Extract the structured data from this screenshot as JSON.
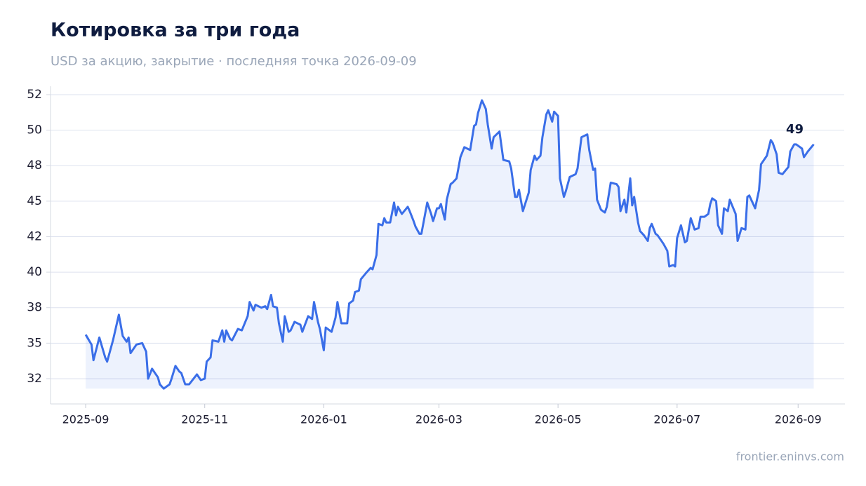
{
  "chart_data": {
    "type": "line",
    "title": "Котировка за три года",
    "subtitle": "USD за акцию, закрытие · последняя точка 2026-09-09",
    "source": "frontier.eninvs.com",
    "color": "#3a6ee8",
    "area": true,
    "grid": true,
    "x": [
      "2025-09-01",
      "2025-09-04",
      "2025-09-05",
      "2025-09-08",
      "2025-09-11",
      "2025-09-12",
      "2025-09-15",
      "2025-09-18",
      "2025-09-20",
      "2025-09-22",
      "2025-09-23",
      "2025-09-24",
      "2025-09-27",
      "2025-09-30",
      "2025-10-02",
      "2025-10-03",
      "2025-10-05",
      "2025-10-08",
      "2025-10-09",
      "2025-10-11",
      "2025-10-14",
      "2025-10-15",
      "2025-10-17",
      "2025-10-19",
      "2025-10-20",
      "2025-10-22",
      "2025-10-24",
      "2025-10-28",
      "2025-10-30",
      "2025-11-01",
      "2025-11-02",
      "2025-11-04",
      "2025-11-05",
      "2025-11-08",
      "2025-11-10",
      "2025-11-11",
      "2025-11-12",
      "2025-11-14",
      "2025-11-15",
      "2025-11-18",
      "2025-11-20",
      "2025-11-23",
      "2025-11-24",
      "2025-11-26",
      "2025-11-27",
      "2025-11-30",
      "2025-12-02",
      "2025-12-03",
      "2025-12-05",
      "2025-12-06",
      "2025-12-08",
      "2025-12-09",
      "2025-12-11",
      "2025-12-12",
      "2025-12-14",
      "2025-12-15",
      "2025-12-17",
      "2025-12-20",
      "2025-12-21",
      "2025-12-24",
      "2025-12-26",
      "2025-12-27",
      "2025-12-29",
      "2025-12-30",
      "2026-01-01",
      "2026-01-02",
      "2026-01-05",
      "2026-01-07",
      "2026-01-08",
      "2026-01-10",
      "2026-01-13",
      "2026-01-14",
      "2026-01-16",
      "2026-01-17",
      "2026-01-19",
      "2026-01-20",
      "2026-01-23",
      "2026-01-25",
      "2026-01-26",
      "2026-01-28",
      "2026-01-29",
      "2026-01-31",
      "2026-02-01",
      "2026-02-02",
      "2026-02-04",
      "2026-02-06",
      "2026-02-07",
      "2026-02-08",
      "2026-02-10",
      "2026-02-13",
      "2026-02-14",
      "2026-02-16",
      "2026-02-17",
      "2026-02-19",
      "2026-02-20",
      "2026-02-23",
      "2026-02-25",
      "2026-02-26",
      "2026-02-28",
      "2026-03-01",
      "2026-03-02",
      "2026-03-04",
      "2026-03-05",
      "2026-03-07",
      "2026-03-08",
      "2026-03-10",
      "2026-03-12",
      "2026-03-14",
      "2026-03-17",
      "2026-03-19",
      "2026-03-20",
      "2026-03-21",
      "2026-03-23",
      "2026-03-25",
      "2026-03-26",
      "2026-03-28",
      "2026-03-29",
      "2026-04-01",
      "2026-04-03",
      "2026-04-06",
      "2026-04-07",
      "2026-04-09",
      "2026-04-10",
      "2026-04-11",
      "2026-04-13",
      "2026-04-16",
      "2026-04-17",
      "2026-04-19",
      "2026-04-20",
      "2026-04-22",
      "2026-04-23",
      "2026-04-25",
      "2026-04-26",
      "2026-04-28",
      "2026-04-29",
      "2026-05-01",
      "2026-05-02",
      "2026-05-04",
      "2026-05-05",
      "2026-05-07",
      "2026-05-10",
      "2026-05-11",
      "2026-05-13",
      "2026-05-16",
      "2026-05-17",
      "2026-05-19",
      "2026-05-20",
      "2026-05-21",
      "2026-05-23",
      "2026-05-25",
      "2026-05-26",
      "2026-05-28",
      "2026-05-31",
      "2026-06-01",
      "2026-06-02",
      "2026-06-04",
      "2026-06-05",
      "2026-06-07",
      "2026-06-08",
      "2026-06-09",
      "2026-06-11",
      "2026-06-12",
      "2026-06-14",
      "2026-06-16",
      "2026-06-17",
      "2026-06-18",
      "2026-06-20",
      "2026-06-21",
      "2026-06-24",
      "2026-06-26",
      "2026-06-27",
      "2026-06-29",
      "2026-06-30",
      "2026-07-01",
      "2026-07-03",
      "2026-07-05",
      "2026-07-06",
      "2026-07-08",
      "2026-07-10",
      "2026-07-12",
      "2026-07-13",
      "2026-07-15",
      "2026-07-17",
      "2026-07-18",
      "2026-07-19",
      "2026-07-21",
      "2026-07-22",
      "2026-07-24",
      "2026-07-25",
      "2026-07-27",
      "2026-07-28",
      "2026-07-31",
      "2026-08-01",
      "2026-08-03",
      "2026-08-05",
      "2026-08-06",
      "2026-08-07",
      "2026-08-10",
      "2026-08-12",
      "2026-08-13",
      "2026-08-16",
      "2026-08-18",
      "2026-08-19",
      "2026-08-21",
      "2026-08-22",
      "2026-08-24",
      "2026-08-27",
      "2026-08-28",
      "2026-08-30",
      "2026-08-31",
      "2026-09-01",
      "2026-09-03",
      "2026-09-04",
      "2026-09-06",
      "2026-09-09"
    ],
    "values": [
      35.6,
      34.9,
      33.8,
      35.4,
      34.0,
      33.7,
      35.2,
      37.0,
      35.5,
      35.1,
      35.4,
      34.3,
      34.9,
      35.0,
      34.4,
      32.5,
      33.2,
      32.6,
      32.1,
      31.8,
      32.1,
      32.5,
      33.4,
      33.0,
      32.9,
      32.1,
      32.1,
      32.8,
      32.4,
      32.5,
      33.7,
      34.0,
      35.2,
      35.1,
      35.9,
      35.1,
      35.9,
      35.3,
      35.2,
      36.0,
      35.9,
      36.9,
      37.9,
      37.3,
      37.7,
      37.5,
      37.6,
      37.4,
      38.4,
      37.6,
      37.5,
      36.4,
      35.1,
      36.9,
      35.8,
      35.9,
      36.5,
      36.3,
      35.8,
      36.9,
      36.7,
      37.9,
      36.5,
      36.0,
      34.5,
      36.1,
      35.8,
      36.8,
      37.9,
      36.4,
      36.4,
      37.8,
      38.0,
      38.6,
      38.7,
      39.5,
      40.0,
      40.3,
      40.2,
      41.2,
      43.4,
      43.3,
      43.8,
      43.5,
      43.5,
      44.9,
      44.0,
      44.6,
      44.1,
      44.6,
      44.3,
      43.6,
      43.2,
      42.7,
      42.7,
      44.9,
      44.1,
      43.6,
      44.5,
      44.5,
      44.8,
      43.7,
      45.1,
      46.2,
      46.3,
      46.6,
      48.1,
      48.8,
      48.6,
      50.3,
      50.4,
      51.2,
      52.1,
      51.5,
      50.4,
      48.7,
      49.5,
      49.9,
      47.9,
      47.8,
      47.3,
      45.3,
      45.3,
      45.8,
      44.3,
      45.6,
      47.2,
      48.2,
      47.9,
      48.2,
      49.5,
      51.1,
      51.4,
      50.6,
      51.3,
      51.0,
      46.6,
      45.3,
      45.7,
      46.7,
      46.9,
      47.3,
      49.5,
      49.7,
      48.6,
      47.2,
      47.3,
      45.1,
      44.4,
      44.2,
      44.6,
      46.3,
      46.2,
      46.0,
      44.3,
      45.1,
      44.2,
      46.6,
      44.7,
      45.3,
      43.5,
      42.9,
      42.6,
      42.2,
      43.1,
      43.4,
      42.7,
      42.6,
      42.0,
      41.5,
      40.4,
      40.5,
      40.4,
      42.4,
      43.3,
      42.1,
      42.2,
      43.8,
      43.0,
      43.1,
      43.9,
      43.9,
      44.1,
      44.8,
      45.2,
      45.0,
      43.3,
      42.7,
      44.5,
      44.3,
      45.1,
      44.1,
      42.2,
      43.1,
      43.0,
      45.3,
      45.4,
      44.5,
      45.8,
      47.6,
      48.2,
      49.3,
      49.1,
      48.3,
      47.0,
      46.9,
      47.4,
      48.5,
      49.0,
      49.0,
      48.9,
      48.7,
      48.1,
      48.5,
      49
    ],
    "xlim": [
      "2025-08-14",
      "2026-09-25"
    ],
    "xticks": [
      {
        "value": "2025-09-01",
        "label": "2025-09"
      },
      {
        "value": "2025-11-01",
        "label": "2025-11"
      },
      {
        "value": "2026-01-01",
        "label": "2026-01"
      },
      {
        "value": "2026-03-01",
        "label": "2026-03"
      },
      {
        "value": "2026-05-01",
        "label": "2026-05"
      },
      {
        "value": "2026-07-01",
        "label": "2026-07"
      },
      {
        "value": "2026-09-01",
        "label": "2026-09"
      }
    ],
    "ylim": [
      30.72,
      53.09
    ],
    "yticks": [
      {
        "value": 32.5,
        "label": "32"
      },
      35,
      {
        "value": 37.5,
        "label": "38"
      },
      40,
      {
        "value": 42.5,
        "label": "42"
      },
      45,
      {
        "value": 47.5,
        "label": "48"
      },
      50,
      {
        "value": 52.5,
        "label": "52"
      }
    ]
  }
}
